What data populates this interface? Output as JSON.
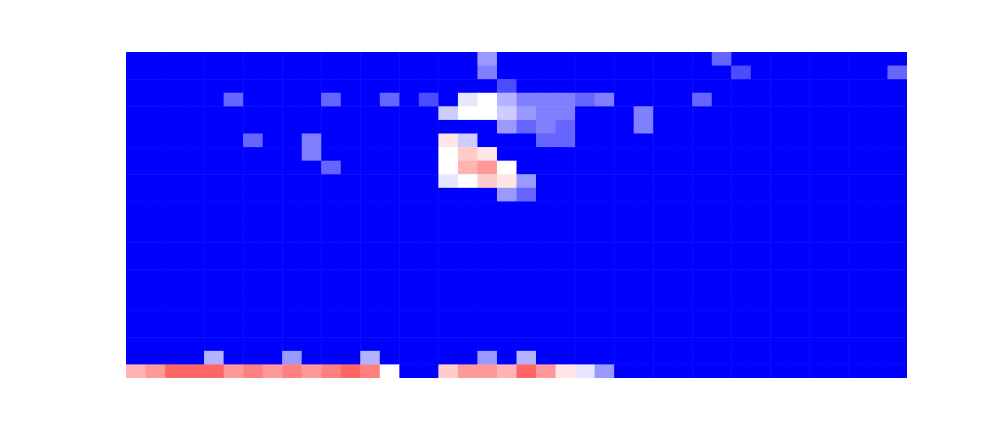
{
  "chart_data": {
    "type": "heatmap",
    "tick_labels": false,
    "zlim": [
      0,
      1
    ],
    "cells": [
      [
        0,
        0,
        0,
        0,
        0,
        0,
        0,
        0,
        0,
        0,
        0,
        0,
        0,
        0,
        0,
        0,
        0,
        0,
        0.3,
        0,
        0,
        0,
        0,
        0,
        0,
        0,
        0,
        0,
        0,
        0,
        0.2,
        0,
        0,
        0,
        0,
        0,
        0,
        0,
        0,
        0
      ],
      [
        0,
        0,
        0,
        0,
        0,
        0,
        0,
        0,
        0,
        0,
        0,
        0,
        0,
        0,
        0,
        0,
        0,
        0,
        0.25,
        0,
        0,
        0,
        0,
        0,
        0,
        0,
        0,
        0,
        0,
        0,
        0,
        0.15,
        0,
        0,
        0,
        0,
        0,
        0,
        0,
        0.2
      ],
      [
        0,
        0,
        0,
        0,
        0,
        0,
        0,
        0,
        0,
        0,
        0,
        0,
        0,
        0,
        0,
        0,
        0,
        0,
        0,
        0.15,
        0,
        0,
        0,
        0,
        0,
        0,
        0,
        0,
        0,
        0,
        0,
        0,
        0,
        0,
        0,
        0,
        0,
        0,
        0,
        0
      ],
      [
        0,
        0,
        0,
        0,
        0,
        0.2,
        0,
        0,
        0,
        0,
        0.2,
        0,
        0,
        0.2,
        0,
        0.15,
        0,
        0.45,
        0.5,
        0.35,
        0.25,
        0.25,
        0.25,
        0.2,
        0.25,
        0,
        0,
        0,
        0,
        0.2,
        0,
        0,
        0,
        0,
        0,
        0,
        0,
        0,
        0,
        0
      ],
      [
        0,
        0,
        0,
        0,
        0,
        0,
        0,
        0,
        0,
        0,
        0,
        0,
        0,
        0,
        0,
        0,
        0.4,
        0.5,
        0.5,
        0.4,
        0.3,
        0.25,
        0.25,
        0,
        0,
        0,
        0.25,
        0,
        0,
        0,
        0,
        0,
        0,
        0,
        0,
        0,
        0,
        0,
        0,
        0
      ],
      [
        0,
        0,
        0,
        0,
        0,
        0,
        0,
        0,
        0,
        0,
        0,
        0,
        0,
        0,
        0,
        0,
        0,
        0,
        0,
        0.3,
        0.2,
        0.25,
        0.2,
        0,
        0,
        0,
        0.25,
        0,
        0,
        0,
        0,
        0,
        0,
        0,
        0,
        0,
        0,
        0,
        0,
        0
      ],
      [
        0,
        0,
        0,
        0,
        0,
        0,
        0.2,
        0,
        0,
        0.25,
        0,
        0,
        0,
        0,
        0,
        0,
        0.55,
        0.4,
        0,
        0,
        0,
        0.2,
        0.2,
        0,
        0,
        0,
        0,
        0,
        0,
        0,
        0,
        0,
        0,
        0,
        0,
        0,
        0,
        0,
        0,
        0
      ],
      [
        0,
        0,
        0,
        0,
        0,
        0,
        0,
        0,
        0,
        0.25,
        0,
        0,
        0,
        0,
        0,
        0,
        0.5,
        0.6,
        0.55,
        0,
        0,
        0,
        0,
        0,
        0,
        0,
        0,
        0,
        0,
        0,
        0,
        0,
        0,
        0,
        0,
        0,
        0,
        0,
        0,
        0
      ],
      [
        0,
        0,
        0,
        0,
        0,
        0,
        0,
        0,
        0,
        0,
        0.2,
        0,
        0,
        0,
        0,
        0,
        0.5,
        0.65,
        0.7,
        0.5,
        0,
        0,
        0,
        0,
        0,
        0,
        0,
        0,
        0,
        0,
        0,
        0,
        0,
        0,
        0,
        0,
        0,
        0,
        0,
        0
      ],
      [
        0,
        0,
        0,
        0,
        0,
        0,
        0,
        0,
        0,
        0,
        0,
        0,
        0,
        0,
        0,
        0,
        0.45,
        0.5,
        0.6,
        0.55,
        0.3,
        0,
        0,
        0,
        0,
        0,
        0,
        0,
        0,
        0,
        0,
        0,
        0,
        0,
        0,
        0,
        0,
        0,
        0,
        0
      ],
      [
        0,
        0,
        0,
        0,
        0,
        0,
        0,
        0,
        0,
        0,
        0,
        0,
        0,
        0,
        0,
        0,
        0,
        0,
        0,
        0.3,
        0.2,
        0,
        0,
        0,
        0,
        0,
        0,
        0,
        0,
        0,
        0,
        0,
        0,
        0,
        0,
        0,
        0,
        0,
        0,
        0
      ],
      [
        0,
        0,
        0,
        0,
        0,
        0,
        0,
        0,
        0,
        0,
        0,
        0,
        0,
        0,
        0,
        0,
        0,
        0,
        0,
        0,
        0,
        0,
        0,
        0,
        0,
        0,
        0,
        0,
        0,
        0,
        0,
        0,
        0,
        0,
        0,
        0,
        0,
        0,
        0,
        0
      ],
      [
        0,
        0,
        0,
        0,
        0,
        0,
        0,
        0,
        0,
        0,
        0,
        0,
        0,
        0,
        0,
        0,
        0,
        0,
        0,
        0,
        0,
        0,
        0,
        0,
        0,
        0,
        0,
        0,
        0,
        0,
        0,
        0,
        0,
        0,
        0,
        0,
        0,
        0,
        0,
        0
      ],
      [
        0,
        0,
        0,
        0,
        0,
        0,
        0,
        0,
        0,
        0,
        0,
        0,
        0,
        0,
        0,
        0,
        0,
        0,
        0,
        0,
        0,
        0,
        0,
        0,
        0,
        0,
        0,
        0,
        0,
        0,
        0,
        0,
        0,
        0,
        0,
        0,
        0,
        0,
        0,
        0
      ],
      [
        0,
        0,
        0,
        0,
        0,
        0,
        0,
        0,
        0,
        0,
        0,
        0,
        0,
        0,
        0,
        0,
        0,
        0,
        0,
        0,
        0,
        0,
        0,
        0,
        0,
        0,
        0,
        0,
        0,
        0,
        0,
        0,
        0,
        0,
        0,
        0,
        0,
        0,
        0,
        0
      ],
      [
        0,
        0,
        0,
        0,
        0,
        0,
        0,
        0,
        0,
        0,
        0,
        0,
        0,
        0,
        0,
        0,
        0,
        0,
        0,
        0,
        0,
        0,
        0,
        0,
        0,
        0,
        0,
        0,
        0,
        0,
        0,
        0,
        0,
        0,
        0,
        0,
        0,
        0,
        0,
        0
      ],
      [
        0,
        0,
        0,
        0,
        0,
        0,
        0,
        0,
        0,
        0,
        0,
        0,
        0,
        0,
        0,
        0,
        0,
        0,
        0,
        0,
        0,
        0,
        0,
        0,
        0,
        0,
        0,
        0,
        0,
        0,
        0,
        0,
        0,
        0,
        0,
        0,
        0,
        0,
        0,
        0
      ],
      [
        0,
        0,
        0,
        0,
        0,
        0,
        0,
        0,
        0,
        0,
        0,
        0,
        0,
        0,
        0,
        0,
        0,
        0,
        0,
        0,
        0,
        0,
        0,
        0,
        0,
        0,
        0,
        0,
        0,
        0,
        0,
        0,
        0,
        0,
        0,
        0,
        0,
        0,
        0,
        0
      ],
      [
        0,
        0,
        0,
        0,
        0,
        0,
        0,
        0,
        0,
        0,
        0,
        0,
        0,
        0,
        0,
        0,
        0,
        0,
        0,
        0,
        0,
        0,
        0,
        0,
        0,
        0,
        0,
        0,
        0,
        0,
        0,
        0,
        0,
        0,
        0,
        0,
        0,
        0,
        0,
        0
      ],
      [
        0,
        0,
        0,
        0,
        0,
        0,
        0,
        0,
        0,
        0,
        0,
        0,
        0,
        0,
        0,
        0,
        0,
        0,
        0,
        0,
        0,
        0,
        0,
        0,
        0,
        0,
        0,
        0,
        0,
        0,
        0,
        0,
        0,
        0,
        0,
        0,
        0,
        0,
        0,
        0
      ],
      [
        0,
        0,
        0,
        0,
        0,
        0,
        0,
        0,
        0,
        0,
        0,
        0,
        0,
        0,
        0,
        0,
        0,
        0,
        0,
        0,
        0,
        0,
        0,
        0,
        0,
        0,
        0,
        0,
        0,
        0,
        0,
        0,
        0,
        0,
        0,
        0,
        0,
        0,
        0,
        0
      ],
      [
        0,
        0,
        0,
        0,
        0,
        0,
        0,
        0,
        0,
        0,
        0,
        0,
        0,
        0,
        0,
        0,
        0,
        0,
        0,
        0,
        0,
        0,
        0,
        0,
        0,
        0,
        0,
        0,
        0,
        0,
        0,
        0,
        0,
        0,
        0,
        0,
        0,
        0,
        0,
        0
      ],
      [
        0,
        0,
        0,
        0,
        0.35,
        0,
        0,
        0,
        0.3,
        0,
        0,
        0,
        0.35,
        0,
        0,
        0,
        0,
        0,
        0.3,
        0,
        0.35,
        0,
        0,
        0,
        0,
        0,
        0,
        0,
        0,
        0,
        0,
        0,
        0,
        0,
        0,
        0,
        0,
        0,
        0,
        0
      ],
      [
        0.65,
        0.7,
        0.8,
        0.8,
        0.8,
        0.7,
        0.75,
        0.7,
        0.75,
        0.7,
        0.75,
        0.8,
        0.75,
        0.5,
        0,
        0,
        0.6,
        0.7,
        0.7,
        0.65,
        0.8,
        0.7,
        0.55,
        0.45,
        0.3,
        0,
        0,
        0,
        0,
        0,
        0,
        0,
        0,
        0,
        0,
        0,
        0,
        0,
        0,
        0
      ]
    ]
  }
}
